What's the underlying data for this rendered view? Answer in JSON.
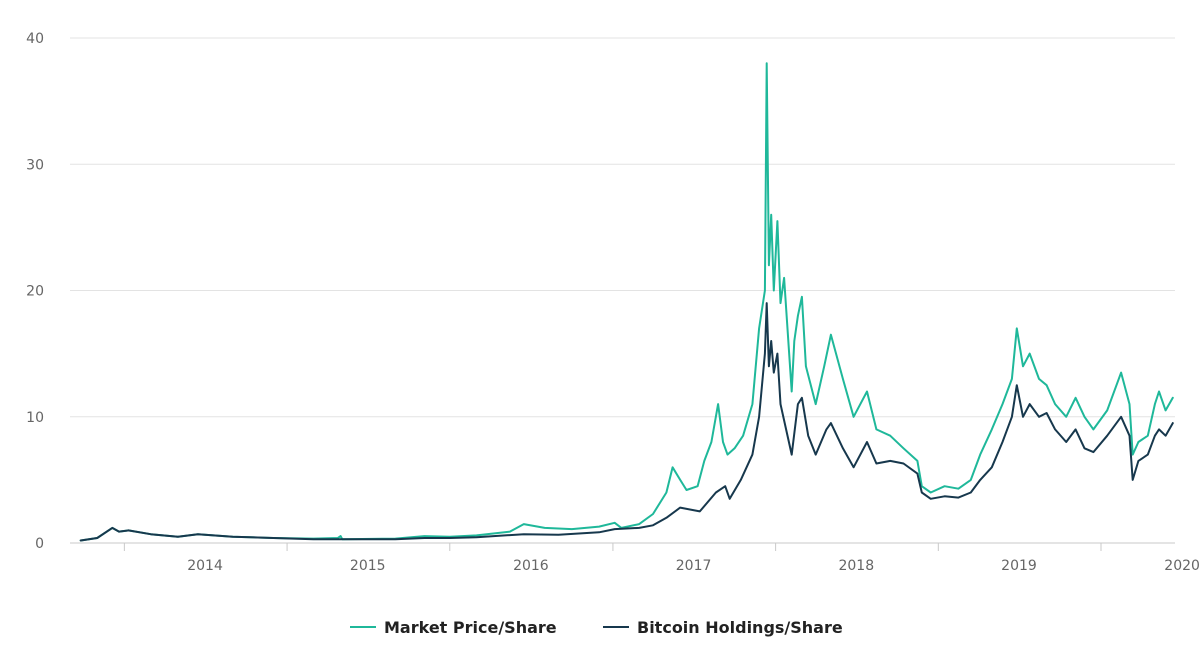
{
  "chart_data": {
    "type": "line",
    "title": "",
    "xlabel": "",
    "ylabel": "",
    "xlim": [
      "2013-09-01",
      "2020-06-15"
    ],
    "ylim": [
      0,
      40
    ],
    "y_ticks": [
      "0",
      "10",
      "20",
      "30",
      "40"
    ],
    "x_ticks": [
      "2014",
      "2015",
      "2016",
      "2017",
      "2018",
      "2019",
      "2020"
    ],
    "grid": true,
    "legend_position": "bottom-center",
    "series": [
      {
        "name": "Market Price/Share",
        "color": "#1fb89a",
        "points": [
          [
            "2013-09-25",
            0.2
          ],
          [
            "2013-11-01",
            0.4
          ],
          [
            "2013-12-05",
            1.2
          ],
          [
            "2013-12-20",
            0.9
          ],
          [
            "2014-01-10",
            1.0
          ],
          [
            "2014-03-01",
            0.7
          ],
          [
            "2014-05-01",
            0.5
          ],
          [
            "2014-06-15",
            0.7
          ],
          [
            "2014-09-01",
            0.5
          ],
          [
            "2014-12-01",
            0.4
          ],
          [
            "2015-03-01",
            0.35
          ],
          [
            "2015-04-25",
            0.4
          ],
          [
            "2015-05-01",
            0.55
          ],
          [
            "2015-05-05",
            0.3
          ],
          [
            "2015-09-01",
            0.35
          ],
          [
            "2015-11-05",
            0.55
          ],
          [
            "2016-01-01",
            0.5
          ],
          [
            "2016-03-01",
            0.6
          ],
          [
            "2016-05-15",
            0.9
          ],
          [
            "2016-06-15",
            1.5
          ],
          [
            "2016-08-01",
            1.2
          ],
          [
            "2016-10-01",
            1.1
          ],
          [
            "2016-12-01",
            1.3
          ],
          [
            "2017-01-05",
            1.6
          ],
          [
            "2017-01-20",
            1.2
          ],
          [
            "2017-03-01",
            1.5
          ],
          [
            "2017-04-01",
            2.3
          ],
          [
            "2017-05-01",
            4.0
          ],
          [
            "2017-05-15",
            6.0
          ],
          [
            "2017-06-01",
            5.0
          ],
          [
            "2017-06-15",
            4.2
          ],
          [
            "2017-07-10",
            4.5
          ],
          [
            "2017-07-25",
            6.5
          ],
          [
            "2017-08-10",
            8.0
          ],
          [
            "2017-08-25",
            11.0
          ],
          [
            "2017-09-05",
            8.0
          ],
          [
            "2017-09-15",
            7.0
          ],
          [
            "2017-10-01",
            7.5
          ],
          [
            "2017-10-20",
            8.5
          ],
          [
            "2017-11-10",
            11.0
          ],
          [
            "2017-11-25",
            17.0
          ],
          [
            "2017-12-08",
            20.0
          ],
          [
            "2017-12-12",
            38.0
          ],
          [
            "2017-12-17",
            22.0
          ],
          [
            "2017-12-22",
            26.0
          ],
          [
            "2017-12-28",
            20.0
          ],
          [
            "2018-01-05",
            25.5
          ],
          [
            "2018-01-12",
            19.0
          ],
          [
            "2018-01-20",
            21.0
          ],
          [
            "2018-02-06",
            12.0
          ],
          [
            "2018-02-12",
            16.0
          ],
          [
            "2018-02-20",
            18.0
          ],
          [
            "2018-03-01",
            19.5
          ],
          [
            "2018-03-10",
            14.0
          ],
          [
            "2018-04-01",
            11.0
          ],
          [
            "2018-04-20",
            14.0
          ],
          [
            "2018-05-05",
            16.5
          ],
          [
            "2018-06-01",
            13.0
          ],
          [
            "2018-06-25",
            10.0
          ],
          [
            "2018-07-25",
            12.0
          ],
          [
            "2018-08-15",
            9.0
          ],
          [
            "2018-09-15",
            8.5
          ],
          [
            "2018-10-15",
            7.5
          ],
          [
            "2018-11-15",
            6.5
          ],
          [
            "2018-11-25",
            4.5
          ],
          [
            "2018-12-15",
            4.0
          ],
          [
            "2019-01-15",
            4.5
          ],
          [
            "2019-02-15",
            4.3
          ],
          [
            "2019-03-15",
            5.0
          ],
          [
            "2019-04-05",
            7.0
          ],
          [
            "2019-05-01",
            9.0
          ],
          [
            "2019-05-25",
            11.0
          ],
          [
            "2019-06-15",
            13.0
          ],
          [
            "2019-06-26",
            17.0
          ],
          [
            "2019-07-10",
            14.0
          ],
          [
            "2019-07-25",
            15.0
          ],
          [
            "2019-08-15",
            13.0
          ],
          [
            "2019-09-01",
            12.5
          ],
          [
            "2019-09-20",
            11.0
          ],
          [
            "2019-10-15",
            10.0
          ],
          [
            "2019-11-05",
            11.5
          ],
          [
            "2019-11-25",
            10.0
          ],
          [
            "2019-12-15",
            9.0
          ],
          [
            "2020-01-15",
            10.5
          ],
          [
            "2020-02-15",
            13.5
          ],
          [
            "2020-03-05",
            11.0
          ],
          [
            "2020-03-12",
            7.0
          ],
          [
            "2020-03-25",
            8.0
          ],
          [
            "2020-04-15",
            8.5
          ],
          [
            "2020-05-01",
            11.0
          ],
          [
            "2020-05-10",
            12.0
          ],
          [
            "2020-05-25",
            10.5
          ],
          [
            "2020-06-10",
            11.5
          ]
        ]
      },
      {
        "name": "Bitcoin Holdings/Share",
        "color": "#17384d",
        "points": [
          [
            "2013-09-25",
            0.2
          ],
          [
            "2013-11-01",
            0.4
          ],
          [
            "2013-12-05",
            1.2
          ],
          [
            "2013-12-20",
            0.9
          ],
          [
            "2014-01-10",
            1.0
          ],
          [
            "2014-03-01",
            0.7
          ],
          [
            "2014-05-01",
            0.5
          ],
          [
            "2014-06-15",
            0.7
          ],
          [
            "2014-09-01",
            0.5
          ],
          [
            "2014-12-01",
            0.4
          ],
          [
            "2015-03-01",
            0.3
          ],
          [
            "2015-09-01",
            0.3
          ],
          [
            "2015-11-05",
            0.4
          ],
          [
            "2016-01-01",
            0.4
          ],
          [
            "2016-03-01",
            0.45
          ],
          [
            "2016-06-15",
            0.7
          ],
          [
            "2016-09-01",
            0.65
          ],
          [
            "2016-12-01",
            0.85
          ],
          [
            "2017-01-05",
            1.1
          ],
          [
            "2017-03-01",
            1.2
          ],
          [
            "2017-04-01",
            1.4
          ],
          [
            "2017-05-01",
            2.0
          ],
          [
            "2017-06-01",
            2.8
          ],
          [
            "2017-07-15",
            2.5
          ],
          [
            "2017-08-20",
            4.0
          ],
          [
            "2017-09-10",
            4.5
          ],
          [
            "2017-09-20",
            3.5
          ],
          [
            "2017-10-15",
            5.0
          ],
          [
            "2017-11-10",
            7.0
          ],
          [
            "2017-11-25",
            10.0
          ],
          [
            "2017-12-08",
            15.0
          ],
          [
            "2017-12-12",
            19.0
          ],
          [
            "2017-12-17",
            14.0
          ],
          [
            "2017-12-22",
            16.0
          ],
          [
            "2017-12-28",
            13.5
          ],
          [
            "2018-01-05",
            15.0
          ],
          [
            "2018-01-12",
            11.0
          ],
          [
            "2018-02-06",
            7.0
          ],
          [
            "2018-02-20",
            11.0
          ],
          [
            "2018-03-01",
            11.5
          ],
          [
            "2018-03-15",
            8.5
          ],
          [
            "2018-04-01",
            7.0
          ],
          [
            "2018-04-25",
            9.0
          ],
          [
            "2018-05-05",
            9.5
          ],
          [
            "2018-06-01",
            7.5
          ],
          [
            "2018-06-25",
            6.0
          ],
          [
            "2018-07-25",
            8.0
          ],
          [
            "2018-08-15",
            6.3
          ],
          [
            "2018-09-15",
            6.5
          ],
          [
            "2018-10-15",
            6.3
          ],
          [
            "2018-11-15",
            5.5
          ],
          [
            "2018-11-25",
            4.0
          ],
          [
            "2018-12-15",
            3.5
          ],
          [
            "2019-01-15",
            3.7
          ],
          [
            "2019-02-15",
            3.6
          ],
          [
            "2019-03-15",
            4.0
          ],
          [
            "2019-04-05",
            5.0
          ],
          [
            "2019-05-01",
            6.0
          ],
          [
            "2019-05-25",
            8.0
          ],
          [
            "2019-06-15",
            10.0
          ],
          [
            "2019-06-26",
            12.5
          ],
          [
            "2019-07-10",
            10.0
          ],
          [
            "2019-07-25",
            11.0
          ],
          [
            "2019-08-15",
            10.0
          ],
          [
            "2019-09-01",
            10.3
          ],
          [
            "2019-09-20",
            9.0
          ],
          [
            "2019-10-15",
            8.0
          ],
          [
            "2019-11-05",
            9.0
          ],
          [
            "2019-11-25",
            7.5
          ],
          [
            "2019-12-15",
            7.2
          ],
          [
            "2020-01-15",
            8.5
          ],
          [
            "2020-02-15",
            10.0
          ],
          [
            "2020-03-05",
            8.5
          ],
          [
            "2020-03-12",
            5.0
          ],
          [
            "2020-03-25",
            6.5
          ],
          [
            "2020-04-15",
            7.0
          ],
          [
            "2020-05-01",
            8.5
          ],
          [
            "2020-05-10",
            9.0
          ],
          [
            "2020-05-25",
            8.5
          ],
          [
            "2020-06-10",
            9.5
          ]
        ]
      }
    ]
  }
}
